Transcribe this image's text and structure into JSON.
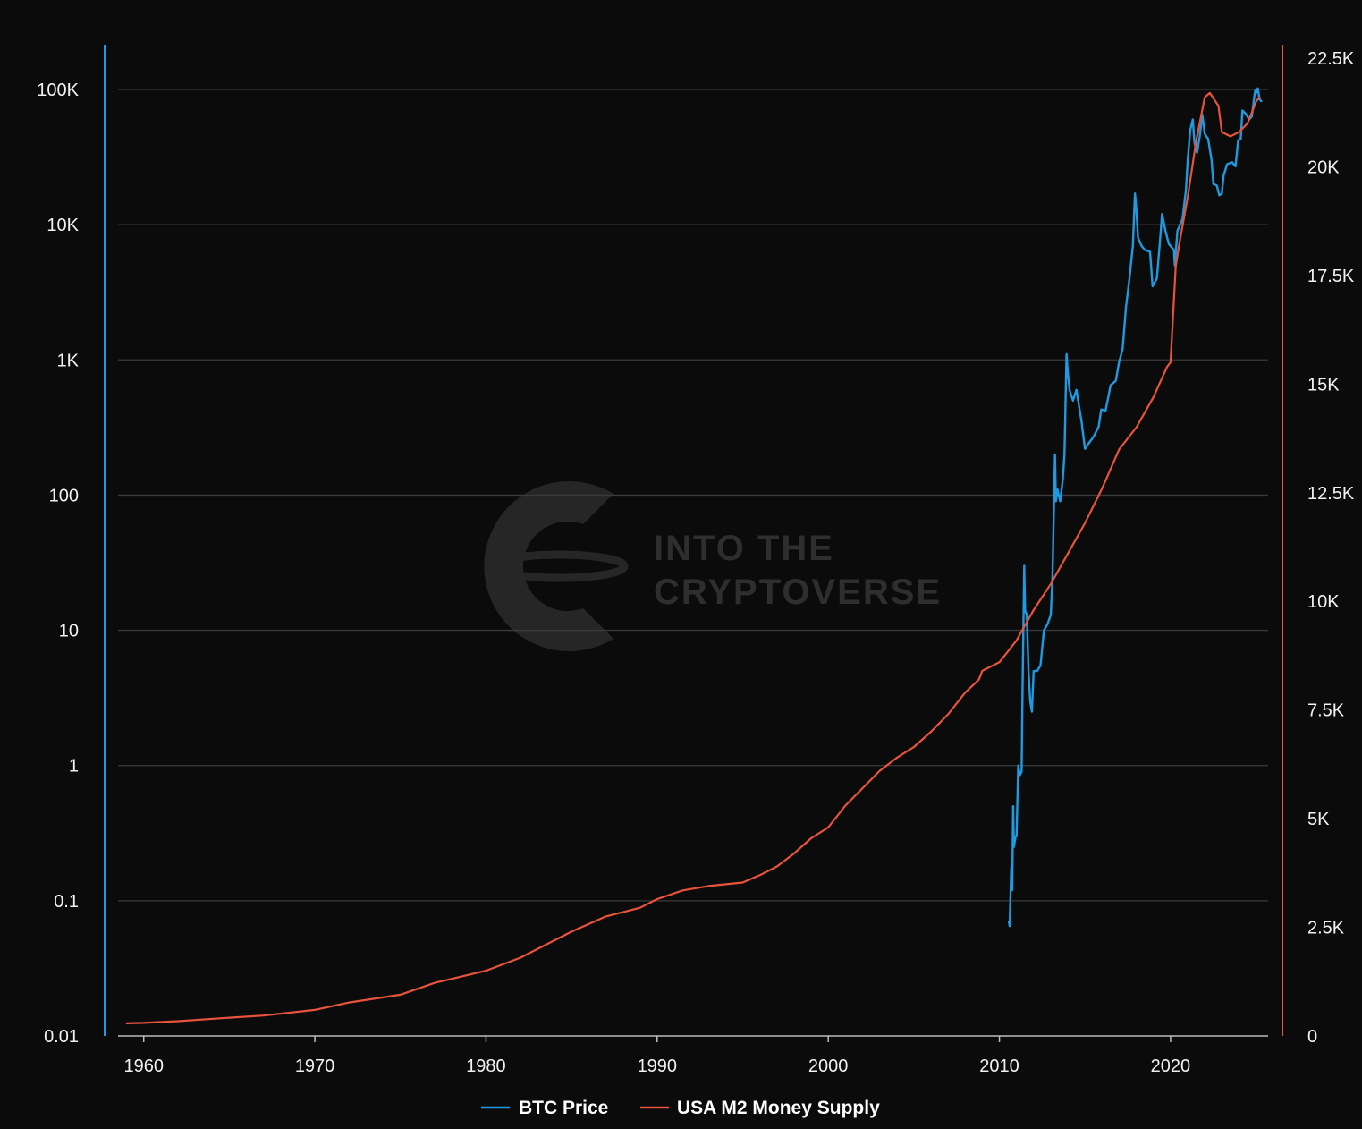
{
  "chart_data": {
    "type": "line",
    "title": "",
    "x_axis": {
      "ticks": [
        1960,
        1970,
        1980,
        1990,
        2000,
        2010,
        2020
      ],
      "range": [
        1958.5,
        2025.7
      ]
    },
    "y_left": {
      "scale": "log",
      "range": [
        0.01,
        100000
      ],
      "ticks": [
        0.01,
        0.1,
        1,
        10,
        100,
        1000,
        10000,
        100000
      ],
      "tick_labels": [
        "0.01",
        "0.1",
        "1",
        "10",
        "100",
        "1K",
        "10K",
        "100K"
      ],
      "color": "#1e9be0"
    },
    "y_right": {
      "scale": "linear",
      "range": [
        0,
        22500
      ],
      "ticks": [
        0,
        2500,
        5000,
        7500,
        10000,
        12500,
        15000,
        17500,
        20000,
        22500
      ],
      "tick_labels": [
        "0",
        "2.5K",
        "5K",
        "7.5K",
        "10K",
        "12.5K",
        "15K",
        "17.5K",
        "20K",
        "22.5K"
      ],
      "color": "#e8533c"
    },
    "grid": true,
    "legend_position": "bottom-center",
    "series": [
      {
        "name": "BTC Price",
        "color": "#1e9be0",
        "axis": "left",
        "points": [
          [
            2010.55,
            0.07
          ],
          [
            2010.6,
            0.065
          ],
          [
            2010.7,
            0.18
          ],
          [
            2010.75,
            0.12
          ],
          [
            2010.8,
            0.5
          ],
          [
            2010.85,
            0.25
          ],
          [
            2010.95,
            0.3
          ],
          [
            2011.0,
            0.3
          ],
          [
            2011.1,
            1.0
          ],
          [
            2011.2,
            0.85
          ],
          [
            2011.3,
            0.9
          ],
          [
            2011.35,
            3.5
          ],
          [
            2011.42,
            15
          ],
          [
            2011.45,
            30
          ],
          [
            2011.5,
            14
          ],
          [
            2011.6,
            13
          ],
          [
            2011.7,
            5
          ],
          [
            2011.8,
            3
          ],
          [
            2011.9,
            2.5
          ],
          [
            2012.0,
            5
          ],
          [
            2012.2,
            5
          ],
          [
            2012.4,
            5.5
          ],
          [
            2012.6,
            10
          ],
          [
            2012.8,
            11
          ],
          [
            2013.0,
            13
          ],
          [
            2013.1,
            25
          ],
          [
            2013.25,
            200
          ],
          [
            2013.3,
            90
          ],
          [
            2013.4,
            110
          ],
          [
            2013.55,
            90
          ],
          [
            2013.7,
            130
          ],
          [
            2013.8,
            200
          ],
          [
            2013.92,
            1100
          ],
          [
            2014.0,
            800
          ],
          [
            2014.1,
            600
          ],
          [
            2014.3,
            500
          ],
          [
            2014.5,
            600
          ],
          [
            2014.6,
            500
          ],
          [
            2014.8,
            350
          ],
          [
            2015.0,
            220
          ],
          [
            2015.2,
            240
          ],
          [
            2015.5,
            270
          ],
          [
            2015.8,
            320
          ],
          [
            2015.95,
            430
          ],
          [
            2016.2,
            420
          ],
          [
            2016.5,
            650
          ],
          [
            2016.8,
            700
          ],
          [
            2016.99,
            960
          ],
          [
            2017.2,
            1200
          ],
          [
            2017.4,
            2500
          ],
          [
            2017.6,
            4000
          ],
          [
            2017.8,
            7000
          ],
          [
            2017.92,
            17000
          ],
          [
            2017.98,
            14000
          ],
          [
            2018.1,
            8000
          ],
          [
            2018.3,
            7000
          ],
          [
            2018.5,
            6500
          ],
          [
            2018.8,
            6300
          ],
          [
            2018.95,
            3500
          ],
          [
            2019.2,
            4000
          ],
          [
            2019.4,
            8000
          ],
          [
            2019.5,
            12000
          ],
          [
            2019.7,
            9000
          ],
          [
            2019.9,
            7200
          ],
          [
            2020.2,
            6500
          ],
          [
            2020.25,
            5000
          ],
          [
            2020.4,
            9000
          ],
          [
            2020.7,
            11000
          ],
          [
            2020.9,
            18000
          ],
          [
            2021.0,
            30000
          ],
          [
            2021.15,
            50000
          ],
          [
            2021.3,
            60000
          ],
          [
            2021.4,
            40000
          ],
          [
            2021.55,
            34000
          ],
          [
            2021.7,
            45000
          ],
          [
            2021.86,
            65000
          ],
          [
            2022.0,
            47000
          ],
          [
            2022.2,
            43000
          ],
          [
            2022.4,
            30000
          ],
          [
            2022.5,
            20000
          ],
          [
            2022.7,
            19500
          ],
          [
            2022.85,
            16500
          ],
          [
            2023.0,
            17000
          ],
          [
            2023.1,
            23000
          ],
          [
            2023.3,
            28000
          ],
          [
            2023.6,
            29000
          ],
          [
            2023.8,
            27000
          ],
          [
            2023.95,
            42000
          ],
          [
            2024.1,
            43000
          ],
          [
            2024.2,
            70000
          ],
          [
            2024.4,
            66000
          ],
          [
            2024.6,
            60000
          ],
          [
            2024.75,
            63000
          ],
          [
            2024.9,
            90000
          ],
          [
            2024.95,
            98000
          ],
          [
            2025.0,
            94000
          ],
          [
            2025.1,
            102000
          ],
          [
            2025.2,
            85000
          ],
          [
            2025.3,
            82000
          ]
        ]
      },
      {
        "name": "USA M2 Money Supply",
        "color": "#e8533c",
        "axis": "right",
        "points": [
          [
            1959.0,
            290
          ],
          [
            1960.0,
            300
          ],
          [
            1962.0,
            340
          ],
          [
            1965.0,
            420
          ],
          [
            1967.0,
            470
          ],
          [
            1970.0,
            600
          ],
          [
            1972.0,
            770
          ],
          [
            1975.0,
            950
          ],
          [
            1977.0,
            1220
          ],
          [
            1980.0,
            1500
          ],
          [
            1982.0,
            1800
          ],
          [
            1983.5,
            2100
          ],
          [
            1985.0,
            2400
          ],
          [
            1987.0,
            2750
          ],
          [
            1989.0,
            2950
          ],
          [
            1990.0,
            3150
          ],
          [
            1991.5,
            3350
          ],
          [
            1993.0,
            3450
          ],
          [
            1995.0,
            3530
          ],
          [
            1996.0,
            3700
          ],
          [
            1997.0,
            3900
          ],
          [
            1998.0,
            4200
          ],
          [
            1999.0,
            4550
          ],
          [
            2000.0,
            4800
          ],
          [
            2001.0,
            5300
          ],
          [
            2002.0,
            5700
          ],
          [
            2003.0,
            6100
          ],
          [
            2004.0,
            6400
          ],
          [
            2005.0,
            6650
          ],
          [
            2006.0,
            7000
          ],
          [
            2007.0,
            7400
          ],
          [
            2008.0,
            7900
          ],
          [
            2008.8,
            8200
          ],
          [
            2009.0,
            8400
          ],
          [
            2010.0,
            8600
          ],
          [
            2011.0,
            9100
          ],
          [
            2012.0,
            9800
          ],
          [
            2013.0,
            10400
          ],
          [
            2014.0,
            11100
          ],
          [
            2015.0,
            11800
          ],
          [
            2016.0,
            12600
          ],
          [
            2017.0,
            13500
          ],
          [
            2018.0,
            14000
          ],
          [
            2019.0,
            14700
          ],
          [
            2019.8,
            15400
          ],
          [
            2020.0,
            15500
          ],
          [
            2020.3,
            17700
          ],
          [
            2020.5,
            18200
          ],
          [
            2021.0,
            19300
          ],
          [
            2021.5,
            20600
          ],
          [
            2022.0,
            21600
          ],
          [
            2022.3,
            21700
          ],
          [
            2022.8,
            21400
          ],
          [
            2023.0,
            20800
          ],
          [
            2023.5,
            20700
          ],
          [
            2024.0,
            20800
          ],
          [
            2024.5,
            21000
          ],
          [
            2025.0,
            21500
          ],
          [
            2025.2,
            21600
          ]
        ]
      }
    ]
  },
  "watermark": {
    "line1": "INTO THE",
    "line2": "CRYPTOVERSE"
  }
}
